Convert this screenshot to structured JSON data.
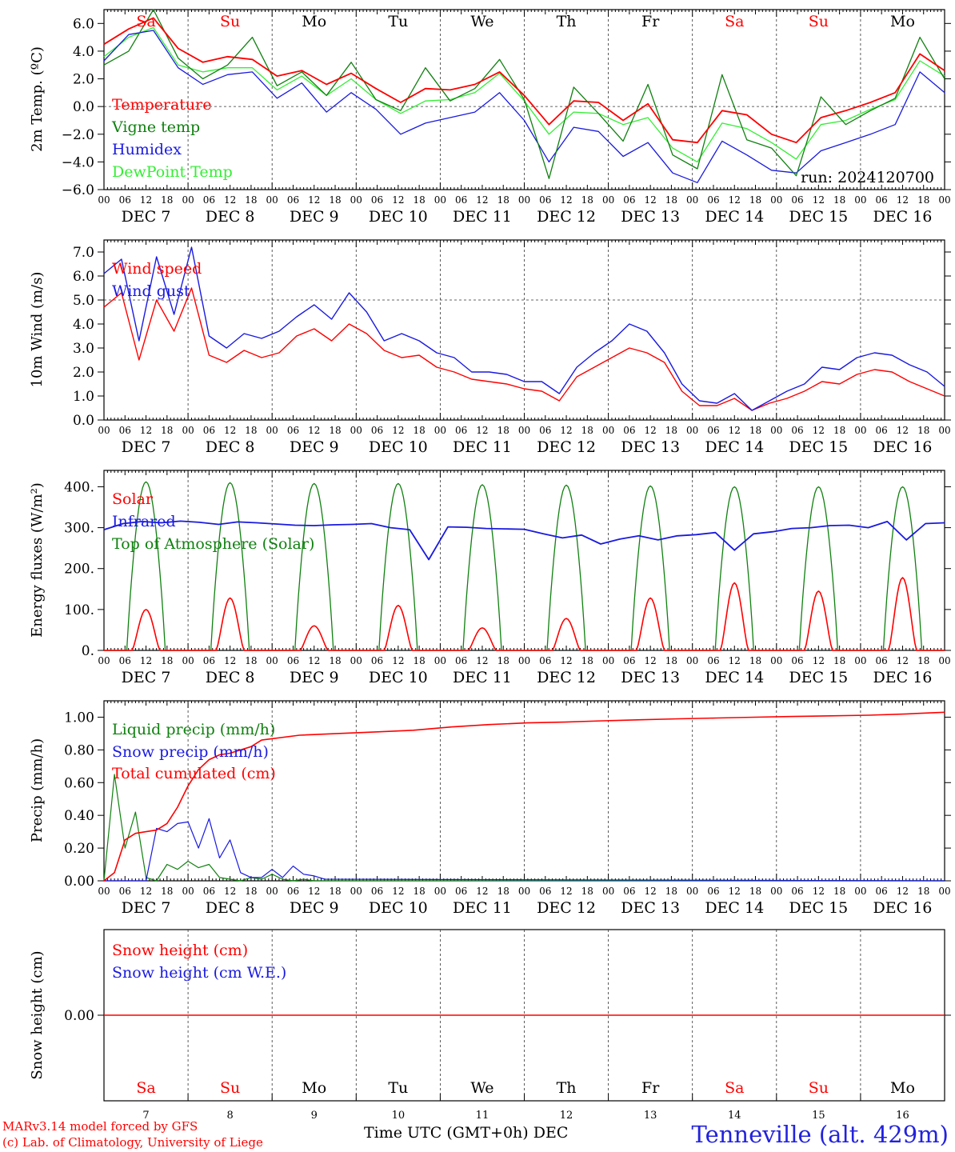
{
  "footer": {
    "credit_model": "MARv3.14 model forced by GFS",
    "credit_lab": "(c) Lab. of Climatology, University of Liege",
    "xaxis_title": "Time UTC (GMT+0h) DEC",
    "station": "Tenneville (alt. 429m)"
  },
  "days": [
    {
      "num": "7",
      "abbr": "Sa",
      "weekend": true
    },
    {
      "num": "8",
      "abbr": "Su",
      "weekend": true
    },
    {
      "num": "9",
      "abbr": "Mo",
      "weekend": false
    },
    {
      "num": "10",
      "abbr": "Tu",
      "weekend": false
    },
    {
      "num": "11",
      "abbr": "We",
      "weekend": false
    },
    {
      "num": "12",
      "abbr": "Th",
      "weekend": false
    },
    {
      "num": "13",
      "abbr": "Fr",
      "weekend": false
    },
    {
      "num": "14",
      "abbr": "Sa",
      "weekend": true
    },
    {
      "num": "15",
      "abbr": "Su",
      "weekend": true
    },
    {
      "num": "16",
      "abbr": "Mo",
      "weekend": false
    }
  ],
  "hour_ticks": [
    "00",
    "06",
    "12",
    "18"
  ],
  "month_label": "DEC",
  "colors": {
    "red": "#ff0000",
    "green": "#108010",
    "blue": "#1a1ae0",
    "lightgreen": "#33ee33",
    "weekend": "#ff0000"
  },
  "chart_data": [
    {
      "type": "line",
      "ylabel": "2m Temp. (ºC)",
      "ylim": [
        -6,
        7
      ],
      "yticks": [
        "−6.0",
        "−4.0",
        "−2.0",
        "0.0",
        "2.0",
        "4.0",
        "6.0"
      ],
      "ytick_values": [
        -6,
        -4,
        -2,
        0,
        2,
        4,
        6
      ],
      "reference_line": 0,
      "annotation": "run: 2024120700",
      "x_hours": [
        0,
        6,
        12,
        18,
        24,
        30,
        36,
        42,
        48,
        54,
        60,
        66,
        72,
        78,
        84,
        90,
        96,
        102,
        108,
        114,
        120,
        126,
        132,
        138,
        144,
        150,
        156,
        162,
        168,
        174,
        180,
        186,
        192,
        198,
        204,
        210,
        216,
        222,
        228,
        234,
        240
      ],
      "series": [
        {
          "name": "Temperature",
          "color": "red",
          "values": [
            4.5,
            5.6,
            6.4,
            4.2,
            3.2,
            3.6,
            3.4,
            2.2,
            2.6,
            1.6,
            2.4,
            1.3,
            0.3,
            1.3,
            1.2,
            1.6,
            2.5,
            0.8,
            -1.3,
            0.4,
            0.3,
            -1.0,
            0.2,
            -2.4,
            -2.6,
            -0.3,
            -0.6,
            -2.0,
            -2.6,
            -0.8,
            -0.3,
            0.3,
            1.0,
            3.8,
            2.6
          ]
        },
        {
          "name": "Vigne temp",
          "color": "green",
          "values": [
            3.0,
            4.0,
            7.0,
            3.5,
            2.0,
            3.0,
            5.0,
            1.5,
            2.5,
            0.8,
            3.2,
            0.5,
            -0.3,
            2.8,
            0.4,
            1.3,
            3.4,
            0.5,
            -5.2,
            1.4,
            -0.5,
            -2.5,
            1.6,
            -3.5,
            -4.5,
            2.3,
            -2.4,
            -3.0,
            -5.0,
            0.7,
            -1.3,
            -0.3,
            0.6,
            5.0,
            2.0
          ]
        },
        {
          "name": "Humidex",
          "color": "blue",
          "values": [
            3.3,
            5.2,
            5.5,
            2.8,
            1.6,
            2.3,
            2.5,
            0.6,
            1.7,
            -0.4,
            1.0,
            -0.2,
            -2.0,
            -1.2,
            -0.8,
            -0.4,
            1.0,
            -1.0,
            -4.0,
            -1.5,
            -1.8,
            -3.6,
            -2.6,
            -4.8,
            -5.5,
            -2.5,
            -3.5,
            -4.6,
            -4.8,
            -3.2,
            -2.6,
            -2.0,
            -1.3,
            2.5,
            1.0
          ]
        },
        {
          "name": "DewPoint Temp",
          "color": "lightgreen",
          "values": [
            3.6,
            5.0,
            5.7,
            3.0,
            2.5,
            2.8,
            2.8,
            1.2,
            2.2,
            0.8,
            2.0,
            0.5,
            -0.5,
            0.4,
            0.5,
            1.0,
            2.4,
            0.4,
            -2.0,
            -0.4,
            -0.5,
            -1.3,
            -0.8,
            -3.0,
            -4.0,
            -1.2,
            -1.6,
            -2.6,
            -3.8,
            -1.3,
            -1.0,
            -0.2,
            0.5,
            3.3,
            2.2
          ]
        }
      ]
    },
    {
      "type": "line",
      "ylabel": "10m Wind (m/s)",
      "ylim": [
        0,
        7.5
      ],
      "yticks": [
        "0.0",
        "1.0",
        "2.0",
        "3.0",
        "4.0",
        "5.0",
        "6.0",
        "7.0"
      ],
      "ytick_values": [
        0,
        1,
        2,
        3,
        4,
        5,
        6,
        7
      ],
      "reference_line": 5,
      "series": [
        {
          "name": "Wind speed",
          "color": "red",
          "values": [
            4.7,
            5.3,
            2.5,
            5.0,
            3.7,
            5.5,
            2.7,
            2.4,
            2.9,
            2.6,
            2.8,
            3.5,
            3.8,
            3.3,
            4.0,
            3.6,
            2.9,
            2.6,
            2.7,
            2.2,
            2.0,
            1.7,
            1.6,
            1.5,
            1.3,
            1.2,
            0.8,
            1.8,
            2.2,
            2.6,
            3.0,
            2.8,
            2.4,
            1.2,
            0.6,
            0.6,
            0.9,
            0.4,
            0.7,
            0.9,
            1.2,
            1.6,
            1.5,
            1.9,
            2.1,
            2.0,
            1.6,
            1.3,
            1.0
          ]
        },
        {
          "name": "Wind gust",
          "color": "blue",
          "values": [
            6.1,
            6.7,
            3.3,
            6.8,
            4.4,
            7.2,
            3.5,
            3.0,
            3.6,
            3.4,
            3.7,
            4.3,
            4.8,
            4.2,
            5.3,
            4.5,
            3.3,
            3.6,
            3.3,
            2.8,
            2.6,
            2.0,
            2.0,
            1.9,
            1.6,
            1.6,
            1.1,
            2.2,
            2.8,
            3.3,
            4.0,
            3.7,
            2.8,
            1.5,
            0.8,
            0.7,
            1.1,
            0.4,
            0.8,
            1.2,
            1.5,
            2.2,
            2.1,
            2.6,
            2.8,
            2.7,
            2.3,
            2.0,
            1.4
          ]
        }
      ]
    },
    {
      "type": "line",
      "ylabel": "Energy fluxes (W/m²)",
      "ylim": [
        0,
        440
      ],
      "yticks": [
        "0.",
        "100.",
        "200.",
        "300.",
        "400."
      ],
      "ytick_values": [
        0,
        100,
        200,
        300,
        400
      ],
      "series": [
        {
          "name": "Solar",
          "color": "red",
          "peaks": [
            100,
            128,
            60,
            110,
            55,
            78,
            128,
            165,
            145,
            178
          ]
        },
        {
          "name": "Infrared",
          "color": "blue",
          "values": [
            295,
            310,
            315,
            312,
            316,
            313,
            308,
            314,
            312,
            309,
            306,
            305,
            307,
            308,
            310,
            300,
            295,
            222,
            302,
            301,
            298,
            297,
            296,
            285,
            275,
            282,
            260,
            272,
            280,
            270,
            280,
            283,
            288,
            245,
            285,
            290,
            298,
            300,
            305,
            306,
            300,
            315,
            270,
            310,
            312
          ]
        },
        {
          "name": "Top of Atmosphere (Solar)",
          "color": "green",
          "peaks": [
            412,
            410,
            408,
            408,
            405,
            404,
            402,
            400,
            400,
            400
          ]
        }
      ]
    },
    {
      "type": "line",
      "ylabel": "Precip (mm/h)",
      "ylim": [
        0,
        1.1
      ],
      "yticks": [
        "0.00",
        "0.20",
        "0.40",
        "0.60",
        "0.80",
        "1.00"
      ],
      "ytick_values": [
        0,
        0.2,
        0.4,
        0.6,
        0.8,
        1.0
      ],
      "series": [
        {
          "name": "Liquid precip (mm/h)",
          "color": "green",
          "values": [
            0,
            0.65,
            0.2,
            0.42,
            0.02,
            0,
            0.1,
            0.07,
            0.12,
            0.08,
            0.1,
            0.02,
            0.01,
            0,
            0.02,
            0.01,
            0.04,
            0.01,
            0,
            0.01,
            0,
            0
          ]
        },
        {
          "name": "Snow precip (mm/h)",
          "color": "blue",
          "values": [
            0,
            0,
            0,
            0,
            0,
            0.32,
            0.3,
            0.35,
            0.36,
            0.2,
            0.38,
            0.14,
            0.25,
            0.05,
            0.02,
            0.02,
            0.07,
            0.02,
            0.09,
            0.04,
            0.03,
            0.01
          ]
        },
        {
          "name": "Total cumulated (cm)",
          "color": "red",
          "values": [
            0,
            0.05,
            0.25,
            0.29,
            0.3,
            0.31,
            0.35,
            0.45,
            0.58,
            0.68,
            0.74,
            0.77,
            0.78,
            0.8,
            0.82,
            0.86,
            0.89,
            0.9,
            0.91,
            0.92,
            0.94,
            0.955,
            0.965,
            0.97,
            0.978,
            0.984,
            0.99,
            0.995,
            1.0,
            1.004,
            1.008,
            1.012,
            1.02,
            1.03
          ]
        }
      ]
    },
    {
      "type": "line",
      "ylabel": "Snow height (cm)",
      "ylim": [
        -1,
        1
      ],
      "yticks": [
        "0.00"
      ],
      "ytick_values": [
        0
      ],
      "series": [
        {
          "name": "Snow height (cm)",
          "color": "red",
          "values": [
            0,
            0
          ]
        },
        {
          "name": "Snow height (cm W.E.)",
          "color": "blue",
          "values": []
        }
      ]
    }
  ]
}
